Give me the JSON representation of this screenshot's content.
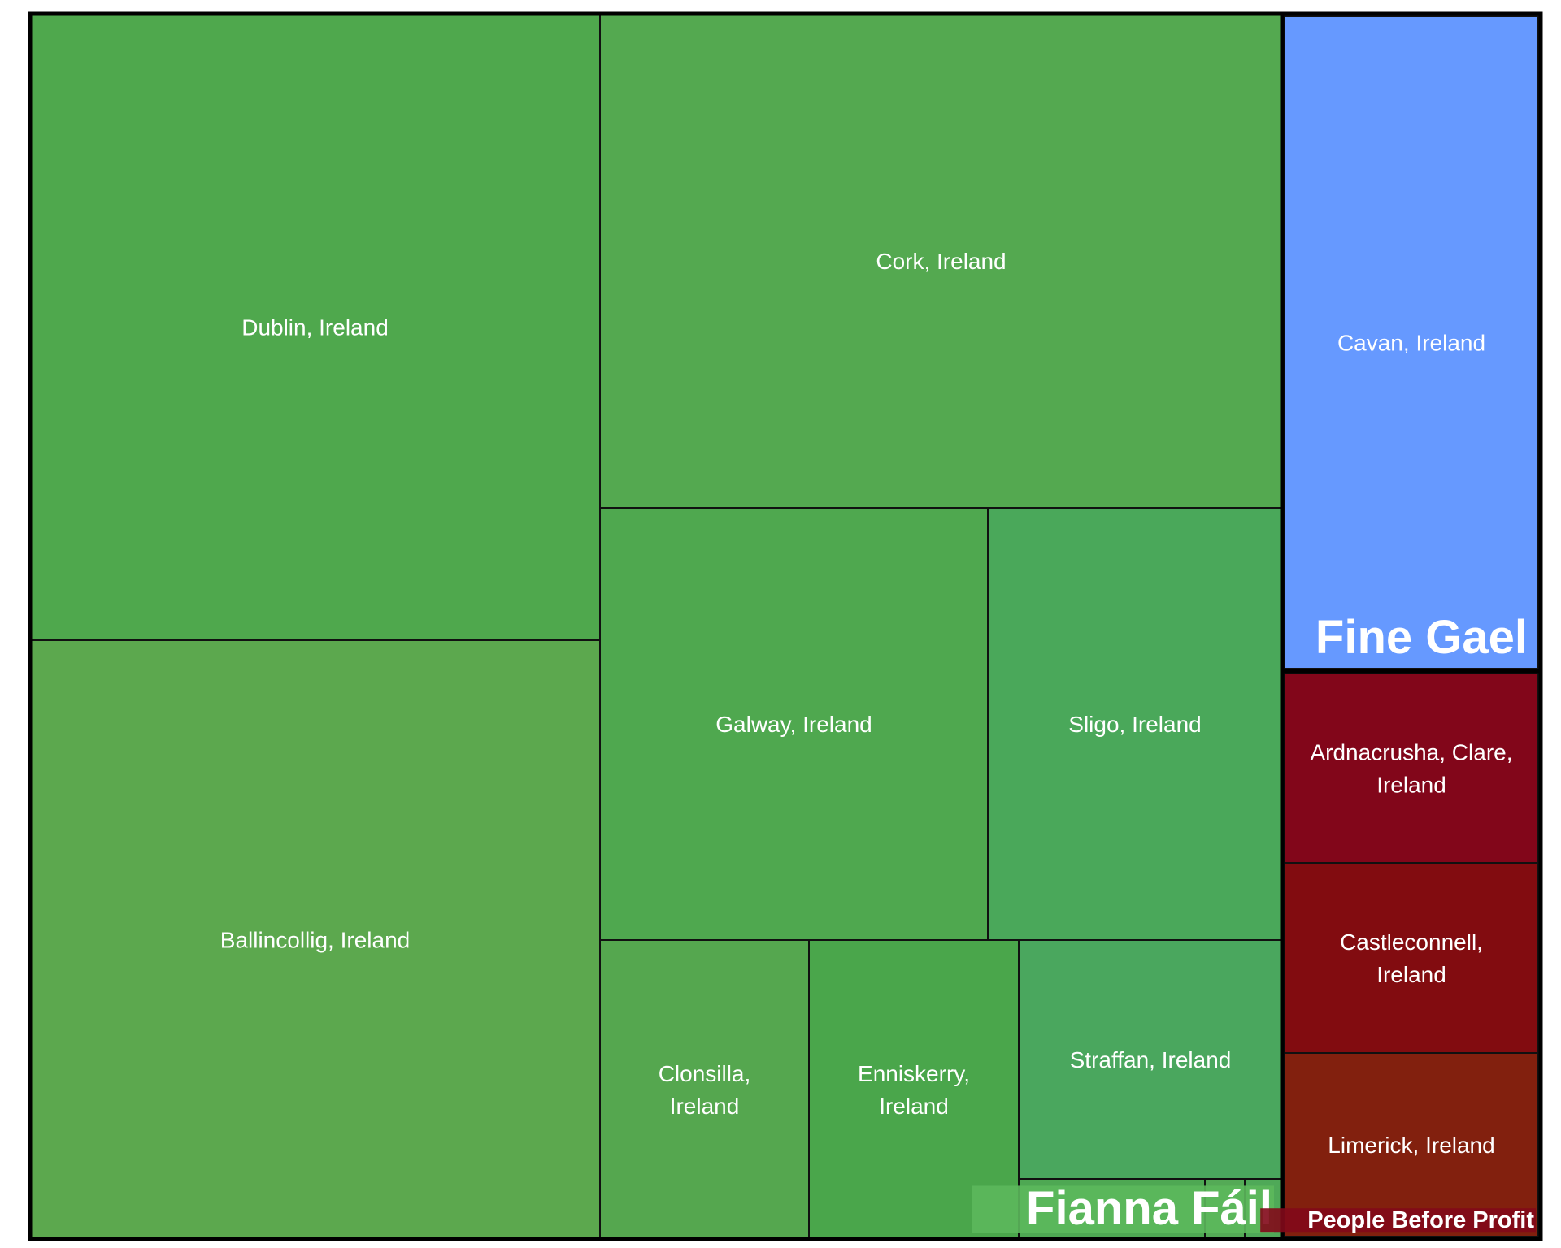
{
  "chart_data": {
    "type": "treemap",
    "groups": [
      {
        "name": "Fianna Fáil",
        "color": "#4caf50",
        "label_bg": "#5cb85c",
        "items": [
          {
            "label": "Dublin, Ireland",
            "color": "#4fa84d"
          },
          {
            "label": "Ballincollig, Ireland",
            "color": "#5ca84e"
          },
          {
            "label": "Cork, Ireland",
            "color": "#54a950"
          },
          {
            "label": "Galway, Ireland",
            "color": "#4fa84f"
          },
          {
            "label": "Sligo, Ireland",
            "color": "#4aa85a"
          },
          {
            "label": "Clonsilla, Ireland",
            "color": "#55a74f"
          },
          {
            "label": "Enniskerry, Ireland",
            "color": "#4aa64b"
          },
          {
            "label": "Straffan, Ireland",
            "color": "#4aa75e"
          },
          {
            "label": "",
            "color": "#4ea853"
          },
          {
            "label": "",
            "color": "#54aa56"
          },
          {
            "label": "",
            "color": "#4fa958"
          }
        ]
      },
      {
        "name": "Fine Gael",
        "color": "#6699ff",
        "items": [
          {
            "label": "Cavan, Ireland",
            "color": "#6699ff"
          }
        ]
      },
      {
        "name": "People Before Profit",
        "color": "#82091a",
        "items": [
          {
            "label": "Ardnacrusha, Clare, Ireland",
            "color": "#82061a"
          },
          {
            "label": "Castleconnell, Ireland",
            "color": "#820c10"
          },
          {
            "label": "Limerick, Ireland",
            "color": "#82200e"
          }
        ]
      }
    ]
  }
}
